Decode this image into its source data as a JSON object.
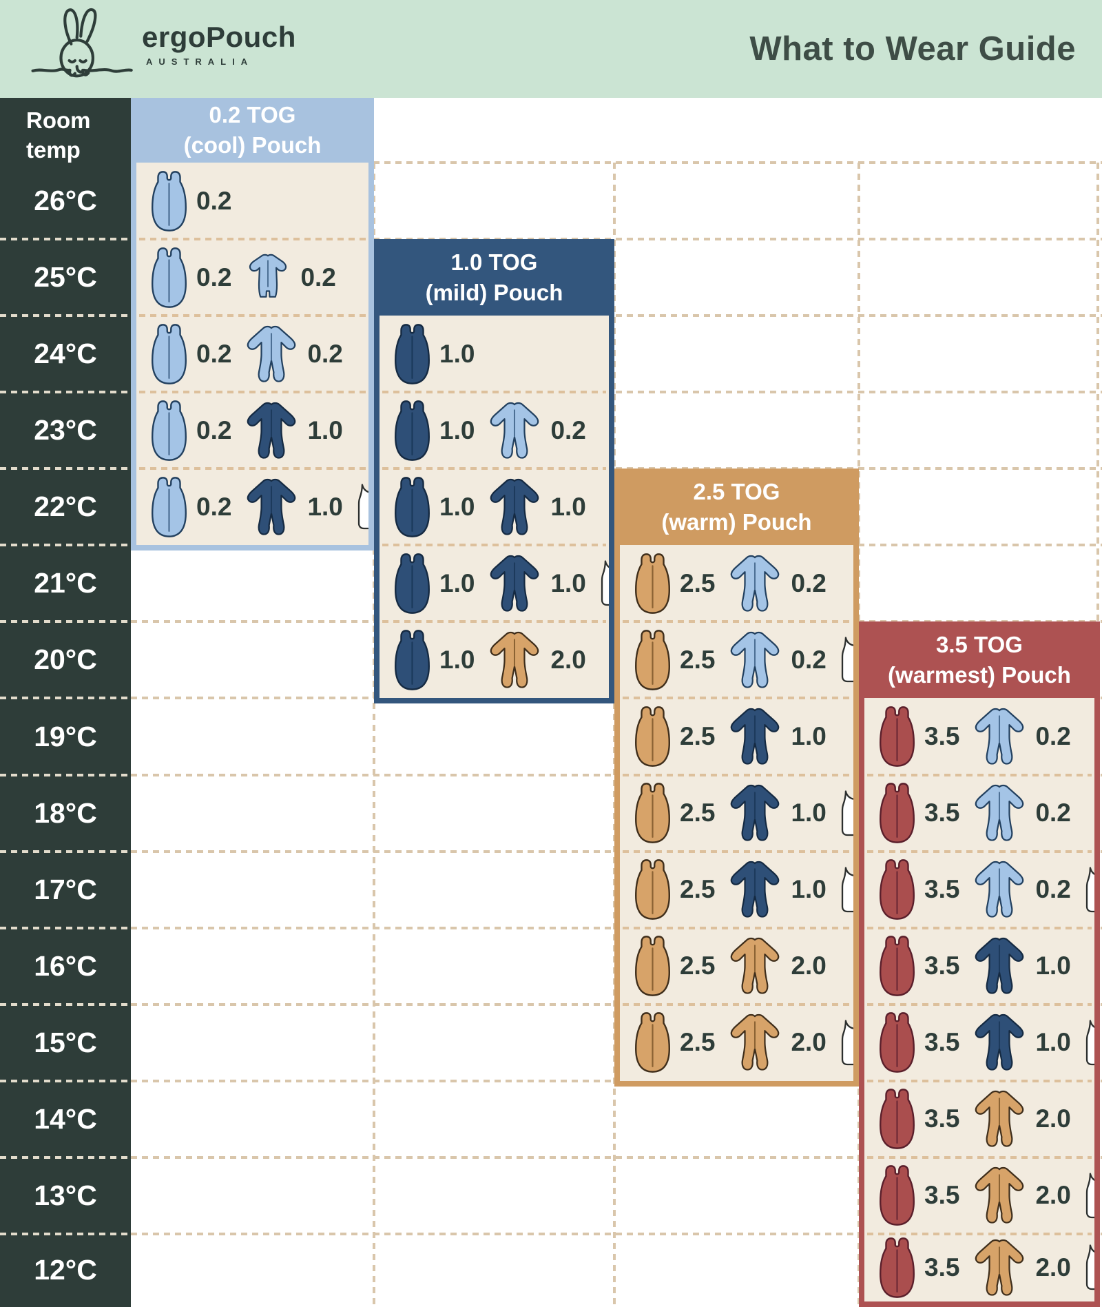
{
  "header": {
    "brand": "ergoPouch",
    "brand_sub": "AUSTRALIA",
    "title": "What to Wear Guide"
  },
  "left_column": {
    "label_line1": "Room",
    "label_line2": "temp",
    "temps": [
      "26°C",
      "25°C",
      "24°C",
      "23°C",
      "22°C",
      "21°C",
      "20°C",
      "19°C",
      "18°C",
      "17°C",
      "16°C",
      "15°C",
      "14°C",
      "13°C",
      "12°C"
    ]
  },
  "colors": {
    "mint": "#cbe4d3",
    "dark": "#2e3d39",
    "cream": "#f2ebdf",
    "text_dark": "#3e4d46",
    "number": "#2e3d39",
    "panel": {
      "lightblue": "#a8c2df",
      "navy": "#33567d",
      "tan": "#cf9b61",
      "maroon": "#ad5252"
    },
    "icon": {
      "lightblue": {
        "fill": "#a4c4e6",
        "outline": "#22405f",
        "zip": "#4c6f94"
      },
      "navy": {
        "fill": "#2e4f77",
        "outline": "#152a42",
        "zip": "#1c3a5c"
      },
      "tan": {
        "fill": "#d7a369",
        "outline": "#3f2e1b",
        "zip": "#8a6233"
      },
      "maroon": {
        "fill": "#aa4e4e",
        "outline": "#5a1f2b",
        "zip": "#6f2936"
      },
      "white": {
        "fill": "#ffffff",
        "outline": "#2c2f2e",
        "zip": "#2c2f2e"
      }
    }
  },
  "panels": [
    {
      "id": "tog-0-2",
      "title_line1": "0.2 TOG",
      "title_line2": "(cool) Pouch",
      "color": "lightblue",
      "col": 0,
      "rows": [
        {
          "temp": 26,
          "items": [
            {
              "icon": "pouch",
              "color": "lightblue",
              "tog": "0.2"
            }
          ]
        },
        {
          "temp": 25,
          "items": [
            {
              "icon": "pouch",
              "color": "lightblue",
              "tog": "0.2"
            },
            {
              "icon": "romper_short",
              "color": "lightblue",
              "tog": "0.2"
            }
          ]
        },
        {
          "temp": 24,
          "items": [
            {
              "icon": "pouch",
              "color": "lightblue",
              "tog": "0.2"
            },
            {
              "icon": "romper",
              "color": "lightblue",
              "tog": "0.2"
            }
          ]
        },
        {
          "temp": 23,
          "items": [
            {
              "icon": "pouch",
              "color": "lightblue",
              "tog": "0.2"
            },
            {
              "icon": "romper",
              "color": "navy",
              "tog": "1.0"
            }
          ]
        },
        {
          "temp": 22,
          "items": [
            {
              "icon": "pouch",
              "color": "lightblue",
              "tog": "0.2"
            },
            {
              "icon": "romper",
              "color": "navy",
              "tog": "1.0"
            },
            {
              "icon": "singlet",
              "color": "white",
              "tog": null
            }
          ]
        }
      ]
    },
    {
      "id": "tog-1-0",
      "title_line1": "1.0 TOG",
      "title_line2": "(mild) Pouch",
      "color": "navy",
      "col": 1,
      "rows": [
        {
          "temp": 24,
          "items": [
            {
              "icon": "pouch",
              "color": "navy",
              "tog": "1.0"
            }
          ]
        },
        {
          "temp": 23,
          "items": [
            {
              "icon": "pouch",
              "color": "navy",
              "tog": "1.0"
            },
            {
              "icon": "romper",
              "color": "lightblue",
              "tog": "0.2"
            }
          ]
        },
        {
          "temp": 22,
          "items": [
            {
              "icon": "pouch",
              "color": "navy",
              "tog": "1.0"
            },
            {
              "icon": "romper",
              "color": "navy",
              "tog": "1.0"
            }
          ]
        },
        {
          "temp": 21,
          "items": [
            {
              "icon": "pouch",
              "color": "navy",
              "tog": "1.0"
            },
            {
              "icon": "romper",
              "color": "navy",
              "tog": "1.0"
            },
            {
              "icon": "singlet",
              "color": "white",
              "tog": null
            }
          ]
        },
        {
          "temp": 20,
          "items": [
            {
              "icon": "pouch",
              "color": "navy",
              "tog": "1.0"
            },
            {
              "icon": "romper",
              "color": "tan",
              "tog": "2.0"
            }
          ]
        }
      ]
    },
    {
      "id": "tog-2-5",
      "title_line1": "2.5 TOG",
      "title_line2": "(warm) Pouch",
      "color": "tan",
      "col": 2,
      "rows": [
        {
          "temp": 21,
          "items": [
            {
              "icon": "pouch",
              "color": "tan",
              "tog": "2.5"
            },
            {
              "icon": "romper",
              "color": "lightblue",
              "tog": "0.2"
            }
          ]
        },
        {
          "temp": 20,
          "items": [
            {
              "icon": "pouch",
              "color": "tan",
              "tog": "2.5"
            },
            {
              "icon": "romper",
              "color": "lightblue",
              "tog": "0.2"
            },
            {
              "icon": "singlet",
              "color": "white",
              "tog": null
            }
          ]
        },
        {
          "temp": 19,
          "items": [
            {
              "icon": "pouch",
              "color": "tan",
              "tog": "2.5"
            },
            {
              "icon": "romper",
              "color": "navy",
              "tog": "1.0"
            }
          ]
        },
        {
          "temp": 18,
          "items": [
            {
              "icon": "pouch",
              "color": "tan",
              "tog": "2.5"
            },
            {
              "icon": "romper",
              "color": "navy",
              "tog": "1.0"
            },
            {
              "icon": "singlet",
              "color": "white",
              "tog": null
            }
          ]
        },
        {
          "temp": 17,
          "items": [
            {
              "icon": "pouch",
              "color": "tan",
              "tog": "2.5"
            },
            {
              "icon": "romper",
              "color": "navy",
              "tog": "1.0"
            },
            {
              "icon": "singlet",
              "color": "white",
              "tog": null
            }
          ]
        },
        {
          "temp": 16,
          "items": [
            {
              "icon": "pouch",
              "color": "tan",
              "tog": "2.5"
            },
            {
              "icon": "romper",
              "color": "tan",
              "tog": "2.0"
            }
          ]
        },
        {
          "temp": 15,
          "items": [
            {
              "icon": "pouch",
              "color": "tan",
              "tog": "2.5"
            },
            {
              "icon": "romper",
              "color": "tan",
              "tog": "2.0"
            },
            {
              "icon": "singlet",
              "color": "white",
              "tog": null
            }
          ]
        }
      ]
    },
    {
      "id": "tog-3-5",
      "title_line1": "3.5 TOG",
      "title_line2": "(warmest) Pouch",
      "color": "maroon",
      "col": 3,
      "rows": [
        {
          "temp": 19,
          "items": [
            {
              "icon": "pouch",
              "color": "maroon",
              "tog": "3.5"
            },
            {
              "icon": "romper",
              "color": "lightblue",
              "tog": "0.2"
            }
          ]
        },
        {
          "temp": 18,
          "items": [
            {
              "icon": "pouch",
              "color": "maroon",
              "tog": "3.5"
            },
            {
              "icon": "romper",
              "color": "lightblue",
              "tog": "0.2"
            }
          ]
        },
        {
          "temp": 17,
          "items": [
            {
              "icon": "pouch",
              "color": "maroon",
              "tog": "3.5"
            },
            {
              "icon": "romper",
              "color": "lightblue",
              "tog": "0.2"
            },
            {
              "icon": "singlet",
              "color": "white",
              "tog": null
            }
          ]
        },
        {
          "temp": 16,
          "items": [
            {
              "icon": "pouch",
              "color": "maroon",
              "tog": "3.5"
            },
            {
              "icon": "romper",
              "color": "navy",
              "tog": "1.0"
            }
          ]
        },
        {
          "temp": 15,
          "items": [
            {
              "icon": "pouch",
              "color": "maroon",
              "tog": "3.5"
            },
            {
              "icon": "romper",
              "color": "navy",
              "tog": "1.0"
            },
            {
              "icon": "singlet",
              "color": "white",
              "tog": null
            }
          ]
        },
        {
          "temp": 14,
          "items": [
            {
              "icon": "pouch",
              "color": "maroon",
              "tog": "3.5"
            },
            {
              "icon": "romper",
              "color": "tan",
              "tog": "2.0"
            }
          ]
        },
        {
          "temp": 13,
          "items": [
            {
              "icon": "pouch",
              "color": "maroon",
              "tog": "3.5"
            },
            {
              "icon": "romper",
              "color": "tan",
              "tog": "2.0"
            },
            {
              "icon": "singlet",
              "color": "white",
              "tog": null
            }
          ]
        },
        {
          "temp": 12,
          "items": [
            {
              "icon": "pouch",
              "color": "maroon",
              "tog": "3.5"
            },
            {
              "icon": "romper",
              "color": "tan",
              "tog": "2.0"
            },
            {
              "icon": "singlet",
              "color": "white",
              "tog": null
            }
          ]
        }
      ]
    }
  ],
  "chart_data": {
    "type": "table",
    "title": "What to Wear Guide",
    "row_header": "Room temp",
    "columns": [
      "0.2 TOG (cool) Pouch",
      "1.0 TOG (mild) Pouch",
      "2.5 TOG (warm) Pouch",
      "3.5 TOG (warmest) Pouch"
    ],
    "temps_c": [
      26,
      25,
      24,
      23,
      22,
      21,
      20,
      19,
      18,
      17,
      16,
      15,
      14,
      13,
      12
    ],
    "rows": [
      {
        "temp": 26,
        "cool": "pouch 0.2",
        "mild": null,
        "warm": null,
        "warmest": null
      },
      {
        "temp": 25,
        "cool": "pouch 0.2 + short suit 0.2",
        "mild": null,
        "warm": null,
        "warmest": null
      },
      {
        "temp": 24,
        "cool": "pouch 0.2 + suit 0.2",
        "mild": "pouch 1.0",
        "warm": null,
        "warmest": null
      },
      {
        "temp": 23,
        "cool": "pouch 0.2 + suit 1.0",
        "mild": "pouch 1.0 + suit 0.2",
        "warm": null,
        "warmest": null
      },
      {
        "temp": 22,
        "cool": "pouch 0.2 + suit 1.0 + singlet",
        "mild": "pouch 1.0 + suit 1.0",
        "warm": null,
        "warmest": null
      },
      {
        "temp": 21,
        "cool": null,
        "mild": "pouch 1.0 + suit 1.0 + singlet",
        "warm": "pouch 2.5 + suit 0.2",
        "warmest": null
      },
      {
        "temp": 20,
        "cool": null,
        "mild": "pouch 1.0 + suit 2.0",
        "warm": "pouch 2.5 + suit 0.2 + singlet",
        "warmest": null
      },
      {
        "temp": 19,
        "cool": null,
        "mild": null,
        "warm": "pouch 2.5 + suit 1.0",
        "warmest": "pouch 3.5 + suit 0.2"
      },
      {
        "temp": 18,
        "cool": null,
        "mild": null,
        "warm": "pouch 2.5 + suit 1.0 + singlet",
        "warmest": "pouch 3.5 + suit 0.2"
      },
      {
        "temp": 17,
        "cool": null,
        "mild": null,
        "warm": "pouch 2.5 + suit 1.0 + singlet",
        "warmest": "pouch 3.5 + suit 0.2 + singlet"
      },
      {
        "temp": 16,
        "cool": null,
        "mild": null,
        "warm": "pouch 2.5 + suit 2.0",
        "warmest": "pouch 3.5 + suit 1.0"
      },
      {
        "temp": 15,
        "cool": null,
        "mild": null,
        "warm": "pouch 2.5 + suit 2.0 + singlet",
        "warmest": "pouch 3.5 + suit 1.0 + singlet"
      },
      {
        "temp": 14,
        "cool": null,
        "mild": null,
        "warm": null,
        "warmest": "pouch 3.5 + suit 2.0"
      },
      {
        "temp": 13,
        "cool": null,
        "mild": null,
        "warm": null,
        "warmest": "pouch 3.5 + suit 2.0 + singlet"
      },
      {
        "temp": 12,
        "cool": null,
        "mild": null,
        "warm": null,
        "warmest": "pouch 3.5 + suit 2.0 + singlet"
      }
    ]
  }
}
